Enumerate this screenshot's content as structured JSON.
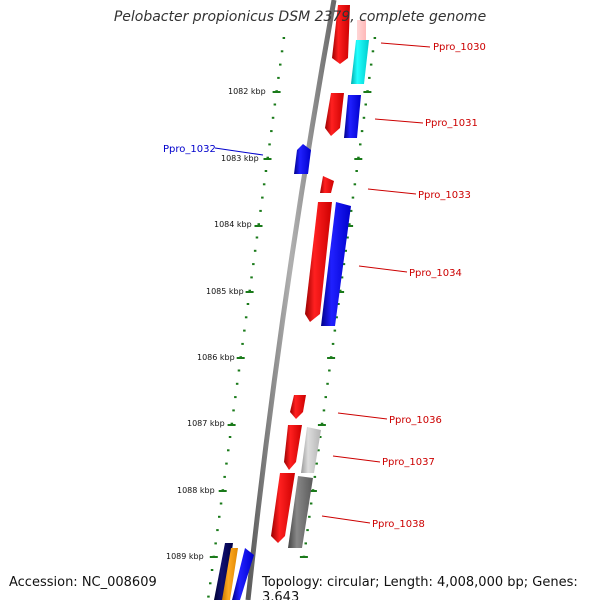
{
  "title": "Pelobacter propionicus DSM 2379, complete genome",
  "footer": {
    "accession": "Accession: NC_008609",
    "summary": "Topology: circular; Length: 4,008,000 bp; Genes: 3,643"
  },
  "colors": {
    "backbone": "#8c8c8c",
    "tick": "#1a7a1a",
    "label_red": "#cc0000",
    "label_blue": "#0000cc"
  },
  "scale_labels": [
    "1082 kbp",
    "1083 kbp",
    "1084 kbp",
    "1085 kbp",
    "1086 kbp",
    "1087 kbp",
    "1088 kbp",
    "1089 kbp"
  ],
  "genes": [
    {
      "label": "Ppro_1030",
      "label_color": "red"
    },
    {
      "label": "Ppro_1031",
      "label_color": "red"
    },
    {
      "label": "Ppro_1032",
      "label_color": "blue"
    },
    {
      "label": "Ppro_1033",
      "label_color": "red"
    },
    {
      "label": "Ppro_1034",
      "label_color": "red"
    },
    {
      "label": "Ppro_1036",
      "label_color": "red"
    },
    {
      "label": "Ppro_1037",
      "label_color": "red"
    },
    {
      "label": "Ppro_1038",
      "label_color": "red"
    }
  ]
}
